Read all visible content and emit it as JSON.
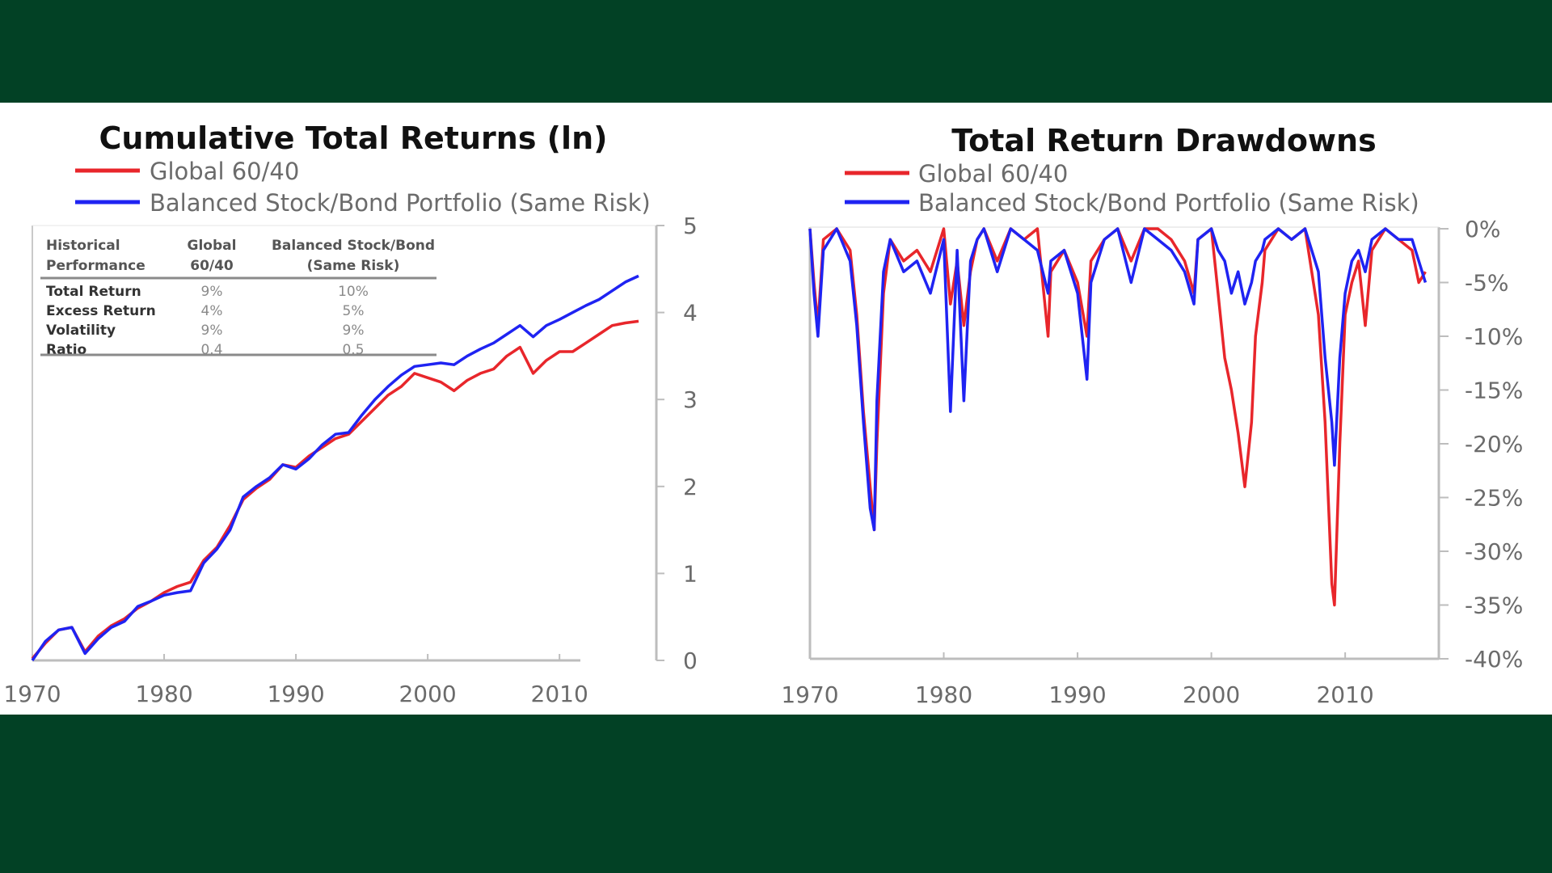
{
  "colors": {
    "background": "#024125",
    "global": "#e8262b",
    "balanced": "#1f23f2",
    "axis": "#bdbdbd"
  },
  "chart_data": [
    {
      "type": "line",
      "title": "Cumulative Total Returns (ln)",
      "legend": [
        "Global 60/40",
        "Balanced Stock/Bond Portfolio (Same Risk)"
      ],
      "xlim": [
        1970,
        2016
      ],
      "ylim": [
        0,
        5
      ],
      "xticks": [
        "1970",
        "1980",
        "1990",
        "2000",
        "2010"
      ],
      "yticks": [
        "0",
        "1",
        "2",
        "3",
        "4",
        "5"
      ],
      "y_axis_side": "right",
      "x": [
        1970,
        1971,
        1972,
        1973,
        1974,
        1975,
        1976,
        1977,
        1978,
        1979,
        1980,
        1981,
        1982,
        1983,
        1984,
        1985,
        1986,
        1987,
        1988,
        1989,
        1990,
        1991,
        1992,
        1993,
        1994,
        1995,
        1996,
        1997,
        1998,
        1999,
        2000,
        2001,
        2002,
        2003,
        2004,
        2005,
        2006,
        2007,
        2008,
        2009,
        2010,
        2011,
        2012,
        2013,
        2014,
        2015,
        2016
      ],
      "series": [
        {
          "name": "Global 60/40",
          "color": "#e8262b",
          "values": [
            0.02,
            0.2,
            0.35,
            0.38,
            0.1,
            0.28,
            0.4,
            0.48,
            0.6,
            0.68,
            0.78,
            0.85,
            0.9,
            1.15,
            1.3,
            1.55,
            1.85,
            1.98,
            2.08,
            2.25,
            2.22,
            2.35,
            2.45,
            2.55,
            2.6,
            2.75,
            2.9,
            3.05,
            3.15,
            3.3,
            3.25,
            3.2,
            3.1,
            3.22,
            3.3,
            3.35,
            3.5,
            3.6,
            3.3,
            3.45,
            3.55,
            3.55,
            3.65,
            3.75,
            3.85,
            3.88,
            3.9
          ]
        },
        {
          "name": "Balanced Stock/Bond Portfolio (Same Risk)",
          "color": "#1f23f2",
          "values": [
            0.0,
            0.22,
            0.35,
            0.38,
            0.08,
            0.25,
            0.38,
            0.45,
            0.62,
            0.68,
            0.75,
            0.78,
            0.8,
            1.12,
            1.28,
            1.5,
            1.88,
            2.0,
            2.1,
            2.25,
            2.2,
            2.32,
            2.48,
            2.6,
            2.62,
            2.82,
            3.0,
            3.15,
            3.28,
            3.38,
            3.4,
            3.42,
            3.4,
            3.5,
            3.58,
            3.65,
            3.75,
            3.85,
            3.72,
            3.85,
            3.92,
            4.0,
            4.08,
            4.15,
            4.25,
            4.35,
            4.42
          ]
        }
      ],
      "table": {
        "headers": [
          [
            "Historical",
            "Performance"
          ],
          [
            "Global",
            "60/40"
          ],
          [
            "Balanced Stock/Bond",
            "(Same Risk)"
          ]
        ],
        "rows": [
          [
            "Total Return",
            "9%",
            "10%"
          ],
          [
            "Excess Return",
            "4%",
            "5%"
          ],
          [
            "Volatility",
            "9%",
            "9%"
          ],
          [
            "Ratio",
            "0.4",
            "0.5"
          ]
        ]
      }
    },
    {
      "type": "line",
      "title": "Total Return Drawdowns",
      "legend": [
        "Global 60/40",
        "Balanced Stock/Bond Portfolio (Same Risk)"
      ],
      "xlim": [
        1970,
        2017
      ],
      "ylim": [
        -40,
        0
      ],
      "xticks": [
        "1970",
        "1980",
        "1990",
        "2000",
        "2010"
      ],
      "yticks": [
        "0%",
        "-5%",
        "-10%",
        "-15%",
        "-20%",
        "-25%",
        "-30%",
        "-35%",
        "-40%"
      ],
      "y_axis_side": "right",
      "series": [
        {
          "name": "Global 60/40",
          "color": "#e8262b",
          "x": [
            1970,
            1970.3,
            1970.6,
            1971,
            1972,
            1973,
            1973.5,
            1974,
            1974.5,
            1974.8,
            1975,
            1975.5,
            1976,
            1977,
            1978,
            1979,
            1980,
            1980.5,
            1981,
            1981.5,
            1982,
            1982.5,
            1983,
            1984,
            1985,
            1986,
            1987,
            1987.8,
            1988,
            1989,
            1990,
            1990.7,
            1991,
            1992,
            1993,
            1994,
            1995,
            1996,
            1997,
            1998,
            1998.7,
            1999,
            2000,
            2000.5,
            2001,
            2001.5,
            2002,
            2002.5,
            2003,
            2003.3,
            2003.8,
            2004,
            2005,
            2006,
            2007,
            2008,
            2008.5,
            2009,
            2009.2,
            2009.6,
            2010,
            2010.5,
            2011,
            2011.5,
            2012,
            2013,
            2014,
            2015,
            2015.5,
            2016
          ],
          "values": [
            0,
            -5,
            -9,
            -1,
            0,
            -2,
            -8,
            -17,
            -24,
            -28,
            -20,
            -6,
            -1,
            -3,
            -2,
            -4,
            0,
            -7,
            -3,
            -9,
            -4,
            -1,
            0,
            -3,
            0,
            -1,
            0,
            -10,
            -4,
            -2,
            -5,
            -10,
            -3,
            -1,
            0,
            -3,
            0,
            0,
            -1,
            -3,
            -6,
            -1,
            0,
            -6,
            -12,
            -15,
            -19,
            -24,
            -18,
            -10,
            -5,
            -2,
            0,
            -1,
            0,
            -8,
            -18,
            -33,
            -35,
            -20,
            -8,
            -5,
            -3,
            -9,
            -2,
            0,
            -1,
            -2,
            -5,
            -4
          ]
        },
        {
          "name": "Balanced Stock/Bond Portfolio (Same Risk)",
          "color": "#1f23f2",
          "x": [
            1970,
            1970.3,
            1970.6,
            1971,
            1972,
            1973,
            1973.5,
            1974,
            1974.5,
            1974.8,
            1975,
            1975.5,
            1976,
            1977,
            1978,
            1979,
            1980,
            1980.5,
            1981,
            1981.5,
            1982,
            1982.5,
            1983,
            1984,
            1985,
            1986,
            1987,
            1987.8,
            1988,
            1989,
            1990,
            1990.7,
            1991,
            1992,
            1993,
            1994,
            1995,
            1996,
            1997,
            1998,
            1998.7,
            1999,
            2000,
            2000.5,
            2001,
            2001.5,
            2002,
            2002.5,
            2003,
            2003.3,
            2003.8,
            2004,
            2005,
            2006,
            2007,
            2008,
            2008.5,
            2009,
            2009.2,
            2009.6,
            2010,
            2010.5,
            2011,
            2011.5,
            2012,
            2013,
            2014,
            2015,
            2015.5,
            2016
          ],
          "values": [
            0,
            -6,
            -10,
            -2,
            0,
            -3,
            -9,
            -18,
            -26,
            -28,
            -16,
            -4,
            -1,
            -4,
            -3,
            -6,
            -1,
            -17,
            -2,
            -16,
            -3,
            -1,
            0,
            -4,
            0,
            -1,
            -2,
            -6,
            -3,
            -2,
            -6,
            -14,
            -5,
            -1,
            0,
            -5,
            0,
            -1,
            -2,
            -4,
            -7,
            -1,
            0,
            -2,
            -3,
            -6,
            -4,
            -7,
            -5,
            -3,
            -2,
            -1,
            0,
            -1,
            0,
            -4,
            -12,
            -18,
            -22,
            -12,
            -6,
            -3,
            -2,
            -4,
            -1,
            0,
            -1,
            -1,
            -3,
            -5
          ]
        }
      ]
    }
  ]
}
